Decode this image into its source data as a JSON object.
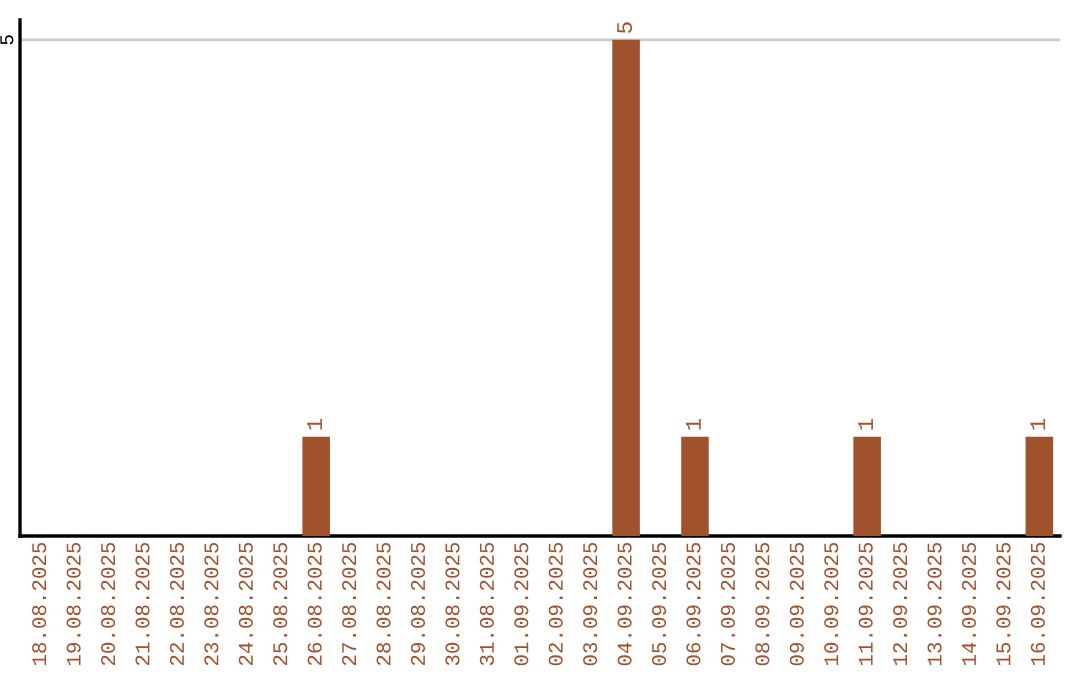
{
  "chart_data": {
    "type": "bar",
    "categories": [
      "18.08.2025",
      "19.08.2025",
      "20.08.2025",
      "21.08.2025",
      "22.08.2025",
      "23.08.2025",
      "24.08.2025",
      "25.08.2025",
      "26.08.2025",
      "27.08.2025",
      "28.08.2025",
      "29.08.2025",
      "30.08.2025",
      "31.08.2025",
      "01.09.2025",
      "02.09.2025",
      "03.09.2025",
      "04.09.2025",
      "05.09.2025",
      "06.09.2025",
      "07.09.2025",
      "08.09.2025",
      "09.09.2025",
      "10.09.2025",
      "11.09.2025",
      "12.09.2025",
      "13.09.2025",
      "14.09.2025",
      "15.09.2025",
      "16.09.2025"
    ],
    "values": [
      0,
      0,
      0,
      0,
      0,
      0,
      0,
      0,
      1,
      0,
      0,
      0,
      0,
      0,
      0,
      0,
      0,
      5,
      0,
      1,
      0,
      0,
      0,
      0,
      1,
      0,
      0,
      0,
      0,
      1
    ],
    "value_labels": [
      null,
      null,
      null,
      null,
      null,
      null,
      null,
      null,
      "1",
      null,
      null,
      null,
      null,
      null,
      null,
      null,
      null,
      "5",
      null,
      "1",
      null,
      null,
      null,
      null,
      "1",
      null,
      null,
      null,
      null,
      "1"
    ],
    "color": "#a0522d",
    "ylim": [
      0,
      5.2
    ],
    "yticks": [
      5
    ],
    "grid": "y"
  }
}
